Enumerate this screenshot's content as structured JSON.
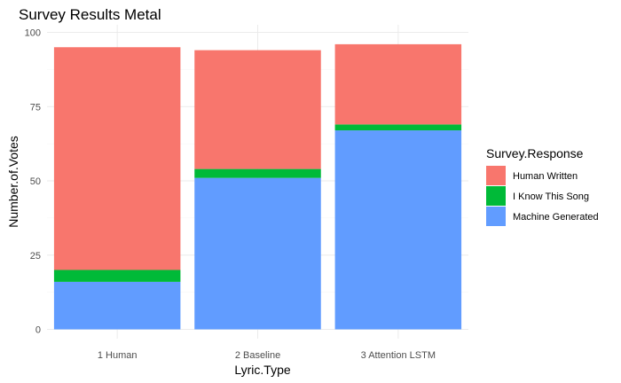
{
  "chart_data": {
    "type": "bar",
    "stacked": true,
    "title": "Survey Results Metal",
    "xlabel": "Lyric.Type",
    "ylabel": "Number.of.Votes",
    "categories": [
      "1 Human",
      "2 Baseline",
      "3 Attention LSTM"
    ],
    "ylim": [
      0,
      100
    ],
    "yticks": [
      0,
      25,
      50,
      75,
      100
    ],
    "grid": true,
    "legend_title": "Survey.Response",
    "legend_position": "right",
    "series": [
      {
        "name": "Machine Generated",
        "color": "#619CFF",
        "values": [
          16,
          51,
          67
        ]
      },
      {
        "name": "I Know This Song",
        "color": "#00BA38",
        "values": [
          4,
          3,
          2
        ]
      },
      {
        "name": "Human Written",
        "color": "#F8766D",
        "values": [
          75,
          40,
          27
        ]
      }
    ],
    "legend_order": [
      "Human Written",
      "I Know This Song",
      "Machine Generated"
    ]
  }
}
